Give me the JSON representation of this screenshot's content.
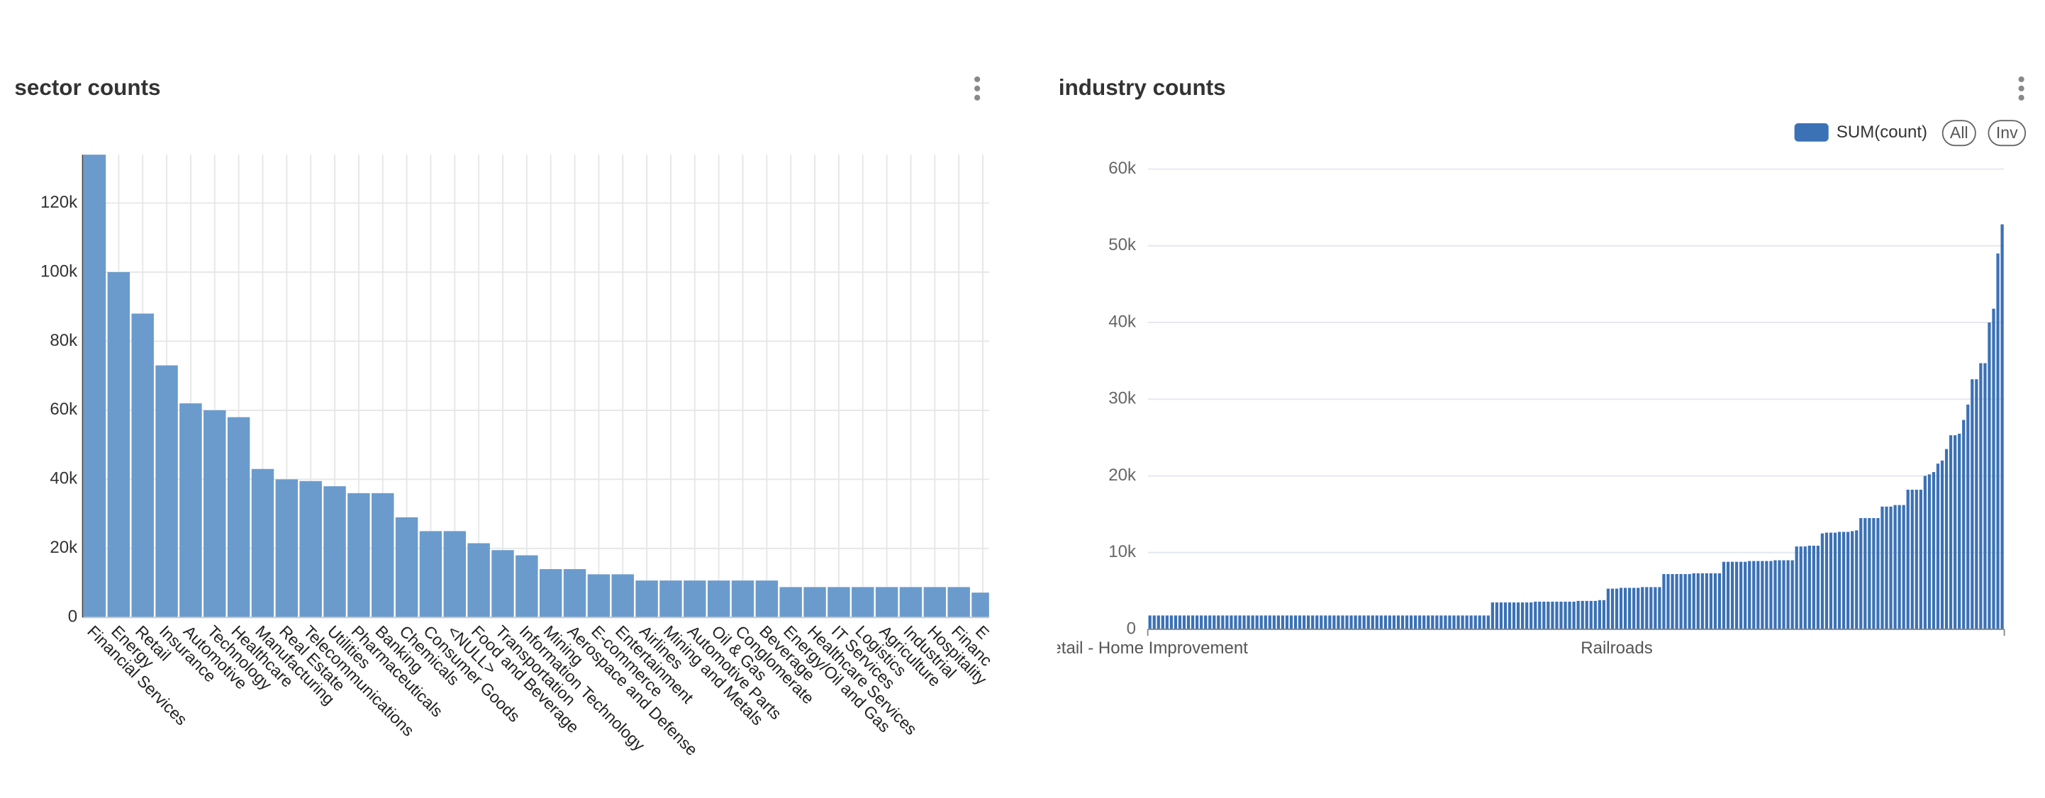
{
  "chart_data": [
    {
      "type": "bar",
      "title": "sector counts",
      "color": "#6b9bcc",
      "categories": [
        "Financial Services",
        "Energy",
        "Retail",
        "Insurance",
        "Automotive",
        "Technology",
        "Healthcare",
        "Manufacturing",
        "Real Estate",
        "Telecommunications",
        "Utilities",
        "Pharmaceuticals",
        "Banking",
        "Chemicals",
        "Consumer Goods",
        "<NULL>",
        "Food and Beverage",
        "Transportation",
        "Information Technology",
        "Mining",
        "Aerospace and Defense",
        "E-commerce",
        "Entertainment",
        "Airlines",
        "Mining and Metals",
        "Automotive Parts",
        "Oil & Gas",
        "Conglomerate",
        "Beverage",
        "Energy/Oil and Gas",
        "Healthcare Services",
        "IT Services",
        "Logistics",
        "Agriculture",
        "Industrial",
        "Hospitality",
        "Financ",
        "E"
      ],
      "values": [
        135000,
        100000,
        88000,
        73000,
        62000,
        60000,
        58000,
        43000,
        40000,
        39500,
        38000,
        36000,
        36000,
        29000,
        25000,
        25000,
        21500,
        19500,
        18000,
        14000,
        14000,
        12500,
        12500,
        10700,
        10700,
        10700,
        10700,
        10700,
        10700,
        8800,
        8800,
        8800,
        8800,
        8800,
        8800,
        8800,
        8800,
        7200
      ],
      "ylim": [
        0,
        134000
      ],
      "yticks": [
        0,
        {
          "value": 20000,
          "label": "20k"
        },
        {
          "value": 40000,
          "label": "40k"
        },
        {
          "value": 60000,
          "label": "60k"
        },
        {
          "value": 80000,
          "label": "80k"
        },
        {
          "value": 100000,
          "label": "100k"
        },
        {
          "value": 120000,
          "label": "120k"
        }
      ],
      "grid": true
    },
    {
      "type": "bar",
      "title": "industry counts",
      "legend_buttons": [
        "All",
        "Inv"
      ],
      "categories": [
        "etail - Home Improvement",
        null,
        null,
        null,
        null,
        null,
        null,
        null,
        null,
        null,
        null,
        null,
        null,
        null,
        null,
        null,
        null,
        null,
        null,
        null,
        null,
        null,
        null,
        null,
        null,
        null,
        null,
        null,
        null,
        null,
        null,
        null,
        null,
        null,
        null,
        null,
        null,
        null,
        null,
        null,
        null,
        null,
        null,
        null,
        null,
        null,
        null,
        null,
        null,
        null,
        null,
        null,
        null,
        null,
        null,
        null,
        null,
        null,
        null,
        null,
        null,
        null,
        null,
        null,
        null,
        null,
        null,
        null,
        null,
        null,
        null,
        null,
        null,
        null,
        null,
        null,
        null,
        null,
        null,
        null,
        null,
        null,
        null,
        null,
        null,
        null,
        null,
        null,
        null,
        null,
        null,
        null,
        null,
        null,
        null,
        null,
        null,
        null,
        null,
        null,
        null,
        null,
        null,
        null,
        null,
        null,
        null,
        null,
        null,
        "Railroads",
        null,
        null,
        null,
        null,
        null,
        null,
        null,
        null,
        null,
        null,
        null,
        null,
        null,
        null,
        null,
        null,
        null,
        null,
        null,
        null,
        null,
        null,
        null,
        null,
        null,
        null,
        null,
        null,
        null,
        null,
        null,
        null,
        null,
        null,
        null,
        null,
        null,
        null,
        null,
        null,
        null,
        null,
        null,
        null,
        null,
        null,
        null,
        null,
        null,
        null,
        null,
        null,
        null,
        null,
        null,
        null,
        null,
        null,
        null,
        null,
        null,
        null,
        null,
        null,
        null,
        null,
        null,
        null,
        null,
        null,
        null,
        null,
        null,
        null,
        null,
        null,
        null,
        null,
        null,
        null,
        null,
        null,
        null,
        null,
        null,
        null,
        null,
        null,
        null,
        null
      ],
      "series": [
        {
          "name": "SUM(count)",
          "color": "#3b71b5",
          "values": [
            1800,
            1800,
            1800,
            1800,
            1800,
            1800,
            1800,
            1800,
            1800,
            1800,
            1800,
            1800,
            1800,
            1800,
            1800,
            1800,
            1800,
            1800,
            1800,
            1800,
            1800,
            1800,
            1800,
            1800,
            1800,
            1800,
            1800,
            1800,
            1800,
            1800,
            1800,
            1800,
            1800,
            1800,
            1800,
            1800,
            1800,
            1800,
            1800,
            1800,
            1800,
            1800,
            1800,
            1800,
            1800,
            1800,
            1800,
            1800,
            1800,
            1800,
            1800,
            1800,
            1800,
            1800,
            1800,
            1800,
            1800,
            1800,
            1800,
            1800,
            1800,
            1800,
            1800,
            1800,
            1800,
            1800,
            1800,
            1800,
            1800,
            1800,
            1800,
            1800,
            1800,
            1800,
            1800,
            1800,
            1800,
            1800,
            1800,
            1800,
            3500,
            3500,
            3500,
            3500,
            3500,
            3500,
            3500,
            3500,
            3500,
            3500,
            3600,
            3600,
            3600,
            3600,
            3600,
            3600,
            3600,
            3600,
            3600,
            3600,
            3700,
            3700,
            3700,
            3700,
            3700,
            3800,
            3800,
            5300,
            5300,
            5300,
            5400,
            5400,
            5400,
            5400,
            5400,
            5500,
            5500,
            5500,
            5500,
            5500,
            7200,
            7200,
            7200,
            7200,
            7200,
            7200,
            7200,
            7300,
            7300,
            7300,
            7300,
            7300,
            7300,
            7300,
            8800,
            8800,
            8800,
            8800,
            8800,
            8800,
            8900,
            8900,
            8900,
            8900,
            8900,
            8900,
            9000,
            9000,
            9000,
            9000,
            9000,
            10800,
            10800,
            10800,
            10900,
            10900,
            10900,
            12500,
            12600,
            12600,
            12600,
            12700,
            12700,
            12700,
            12800,
            12900,
            14500,
            14500,
            14500,
            14500,
            14500,
            16000,
            16000,
            16000,
            16200,
            16200,
            16200,
            18200,
            18200,
            18200,
            18200,
            20000,
            20200,
            20500,
            21600,
            22000,
            23500,
            25300,
            25300,
            25500,
            27300,
            29300,
            32600,
            32600,
            34700,
            34700,
            40000,
            41800,
            49000,
            52800
          ]
        }
      ],
      "ylim": [
        0,
        60000
      ],
      "yticks": [
        0,
        {
          "value": 10000,
          "label": "10k"
        },
        {
          "value": 20000,
          "label": "20k"
        },
        {
          "value": 30000,
          "label": "30k"
        },
        {
          "value": 40000,
          "label": "40k"
        },
        {
          "value": 50000,
          "label": "50k"
        },
        {
          "value": 60000,
          "label": "60k"
        }
      ],
      "grid": true
    }
  ]
}
